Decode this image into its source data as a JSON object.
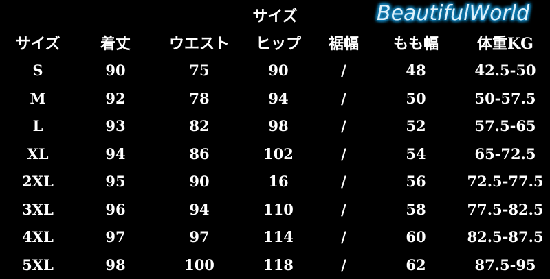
{
  "title": "サイズ",
  "headers": [
    "サイズ",
    "着丈",
    "ウエスト",
    "ヒップ",
    "裾幅",
    "もも幅",
    "体重KG"
  ],
  "rows": [
    [
      "S",
      "90",
      "75",
      "90",
      "/",
      "48",
      "42.5-50"
    ],
    [
      "M",
      "92",
      "78",
      "94",
      "/",
      "50",
      "50-57.5"
    ],
    [
      "L",
      "93",
      "82",
      "98",
      "/",
      "52",
      "57.5-65"
    ],
    [
      "XL",
      "94",
      "86",
      "102",
      "/",
      "54",
      "65-72.5"
    ],
    [
      "2XL",
      "95",
      "90",
      "16",
      "/",
      "56",
      "72.5-77.5"
    ],
    [
      "3XL",
      "96",
      "94",
      "110",
      "/",
      "58",
      "77.5-82.5"
    ],
    [
      "4XL",
      "97",
      "97",
      "114",
      "/",
      "60",
      "82.5-87.5"
    ],
    [
      "5XL",
      "98",
      "100",
      "118",
      "/",
      "62",
      "87.5-95"
    ]
  ],
  "watermark": "BeautifulWorld",
  "colors": {
    "background": "#000000",
    "text": "#ffffff",
    "watermark_glow": "#1480b8"
  }
}
